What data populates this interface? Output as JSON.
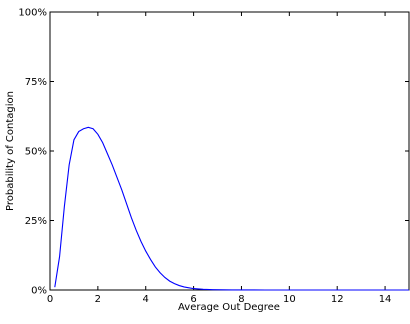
{
  "chart_data": {
    "type": "line",
    "title": "",
    "xlabel": "Average Out Degree",
    "ylabel": "Probability of Contagion",
    "xlim": [
      0,
      15
    ],
    "ylim": [
      0,
      100
    ],
    "xticks": [
      {
        "value": 0,
        "label": "0"
      },
      {
        "value": 2,
        "label": "2"
      },
      {
        "value": 4,
        "label": "4"
      },
      {
        "value": 6,
        "label": "6"
      },
      {
        "value": 8,
        "label": "8"
      },
      {
        "value": 10,
        "label": "10"
      },
      {
        "value": 12,
        "label": "12"
      },
      {
        "value": 14,
        "label": "14"
      }
    ],
    "yticks": [
      {
        "value": 0,
        "label": "0%"
      },
      {
        "value": 25,
        "label": "25%"
      },
      {
        "value": 50,
        "label": "50%"
      },
      {
        "value": 75,
        "label": "75%"
      },
      {
        "value": 100,
        "label": "100%"
      }
    ],
    "grid": false,
    "series": [
      {
        "color": "#0000ff",
        "x": [
          0.2,
          0.4,
          0.6,
          0.8,
          1.0,
          1.2,
          1.4,
          1.6,
          1.8,
          2.0,
          2.2,
          2.4,
          2.6,
          2.8,
          3.0,
          3.2,
          3.4,
          3.6,
          3.8,
          4.0,
          4.2,
          4.4,
          4.6,
          4.8,
          5.0,
          5.2,
          5.4,
          5.6,
          5.8,
          6.0,
          6.4,
          6.8,
          7.2,
          7.6,
          8.0,
          9.0,
          10.0,
          11.0,
          12.0,
          13.0,
          14.0,
          15.0
        ],
        "y": [
          1,
          12,
          30,
          45,
          54,
          57,
          58,
          58.5,
          58,
          56,
          53,
          49,
          45,
          40.5,
          36,
          31,
          26,
          21.5,
          17.5,
          14,
          11,
          8.3,
          6.2,
          4.5,
          3.2,
          2.3,
          1.6,
          1.1,
          0.8,
          0.5,
          0.25,
          0.12,
          0.05,
          0.02,
          0.01,
          0,
          0,
          0,
          0,
          0,
          0,
          0
        ]
      }
    ]
  }
}
